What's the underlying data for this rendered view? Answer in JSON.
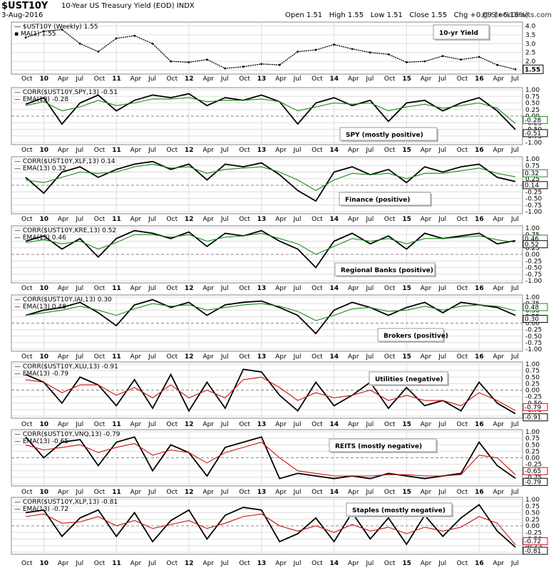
{
  "header": {
    "symbol": "$UST10Y",
    "description": "10-Year US Treasury Yield (EOD)",
    "exchange": "INDX",
    "date": "3-Aug-2016",
    "watermark": "@ StockCharts.com",
    "ohlc": {
      "open_label": "Open",
      "open": "1.51",
      "high_label": "High",
      "high": "1.55",
      "low_label": "Low",
      "low": "1.51",
      "close_label": "Close",
      "close": "1.55",
      "chg_label": "Chg",
      "chg": "+0.09 (+6.16%)"
    }
  },
  "colors": {
    "price": "#000000",
    "corr": "#000000",
    "ema_green": "#1a8a1a",
    "ema_red": "#cc1111",
    "grid": "#dddddd",
    "annot_green": "#1a8a1a",
    "annot_red": "#cc1111"
  },
  "chart_data": [
    {
      "type": "line",
      "series": [
        {
          "name": "$UST10Y (Weekly) 1.55"
        },
        {
          "name": "MA(1) 1.55"
        }
      ],
      "title": "",
      "annotation": "10-yr Yield",
      "yticks": [
        "4.0",
        "3.5",
        "3.0",
        "2.5",
        "2.0",
        "1.5"
      ],
      "ylim": [
        1.4,
        4.1
      ],
      "last_value": "1.55",
      "x": [
        "Oct",
        "10",
        "Apr",
        "Jul",
        "Oct",
        "11",
        "Apr",
        "Jul",
        "Oct",
        "12",
        "Apr",
        "Jul",
        "Oct",
        "13",
        "Apr",
        "Jul",
        "Oct",
        "14",
        "Apr",
        "Jul",
        "Oct",
        "15",
        "Apr",
        "Jul",
        "Oct",
        "16",
        "Apr",
        "Jul"
      ],
      "y": [
        3.35,
        3.7,
        3.8,
        3.0,
        2.55,
        3.3,
        3.45,
        3.0,
        2.0,
        1.95,
        2.1,
        1.6,
        1.7,
        1.85,
        1.8,
        2.55,
        2.65,
        2.95,
        2.7,
        2.5,
        2.4,
        1.95,
        2.0,
        2.3,
        2.1,
        2.25,
        1.8,
        1.55
      ]
    },
    {
      "type": "line",
      "indicator": "CORR($UST10Y,SPY,13) -0.51",
      "ema_label": "EMA(13) -0.28",
      "annotation": "SPY (mostly positive)",
      "ema_color": "green",
      "last_value": "-0.51",
      "ema_last_value": "-0.28",
      "ylim": [
        -1.0,
        1.0
      ],
      "x": [
        "Oct",
        "10",
        "Apr",
        "Jul",
        "Oct",
        "11",
        "Apr",
        "Jul",
        "Oct",
        "12",
        "Apr",
        "Jul",
        "Oct",
        "13",
        "Apr",
        "Jul",
        "Oct",
        "14",
        "Apr",
        "Jul",
        "Oct",
        "15",
        "Apr",
        "Jul",
        "Oct",
        "16",
        "Apr",
        "Jul"
      ],
      "series": [
        {
          "name": "CORR",
          "values": [
            0.45,
            0.7,
            -0.3,
            0.5,
            0.8,
            0.2,
            0.6,
            0.8,
            0.7,
            0.85,
            0.4,
            0.7,
            0.6,
            0.8,
            0.55,
            -0.3,
            0.5,
            0.7,
            0.4,
            0.6,
            -0.2,
            0.5,
            0.6,
            0.2,
            0.5,
            0.7,
            0.2,
            -0.51
          ]
        },
        {
          "name": "EMA",
          "values": [
            0.4,
            0.55,
            0.2,
            0.35,
            0.6,
            0.4,
            0.5,
            0.65,
            0.65,
            0.7,
            0.55,
            0.6,
            0.6,
            0.65,
            0.55,
            0.2,
            0.35,
            0.5,
            0.45,
            0.5,
            0.2,
            0.35,
            0.45,
            0.3,
            0.4,
            0.5,
            0.3,
            -0.28
          ]
        }
      ]
    },
    {
      "type": "line",
      "indicator": "CORR($UST10Y,XLF,13) 0.14",
      "ema_label": "EMA(13) 0.32",
      "annotation": "Finance (positive)",
      "ema_color": "green",
      "last_value": "0.14",
      "ema_last_value": "0.32",
      "ylim": [
        -1.0,
        1.0
      ],
      "x": [
        "Oct",
        "10",
        "Apr",
        "Jul",
        "Oct",
        "11",
        "Apr",
        "Jul",
        "Oct",
        "12",
        "Apr",
        "Jul",
        "Oct",
        "13",
        "Apr",
        "Jul",
        "Oct",
        "14",
        "Apr",
        "Jul",
        "Oct",
        "15",
        "Apr",
        "Jul",
        "Oct",
        "16",
        "Apr",
        "Jul"
      ],
      "series": [
        {
          "name": "CORR",
          "values": [
            0.3,
            -0.3,
            0.5,
            0.7,
            0.3,
            0.6,
            0.8,
            0.9,
            0.6,
            0.8,
            0.2,
            0.8,
            0.7,
            0.85,
            0.4,
            -0.2,
            -0.6,
            0.5,
            0.7,
            0.4,
            0.6,
            0.1,
            0.7,
            0.5,
            0.7,
            0.8,
            0.3,
            0.14
          ]
        },
        {
          "name": "EMA",
          "values": [
            0.2,
            0.1,
            0.3,
            0.5,
            0.45,
            0.5,
            0.7,
            0.8,
            0.65,
            0.7,
            0.45,
            0.6,
            0.65,
            0.7,
            0.5,
            0.2,
            -0.2,
            0.2,
            0.45,
            0.4,
            0.45,
            0.25,
            0.45,
            0.45,
            0.55,
            0.65,
            0.45,
            0.32
          ]
        }
      ]
    },
    {
      "type": "line",
      "indicator": "CORR($UST10Y,KRE,13) 0.52",
      "ema_label": "EMA(13) 0.46",
      "annotation": "Regional Banks (positive)",
      "ema_color": "green",
      "last_value": "0.52",
      "ema_last_value": "0.46",
      "ylim": [
        -1.0,
        1.0
      ],
      "x": [
        "Oct",
        "10",
        "Apr",
        "Jul",
        "Oct",
        "11",
        "Apr",
        "Jul",
        "Oct",
        "12",
        "Apr",
        "Jul",
        "Oct",
        "13",
        "Apr",
        "Jul",
        "Oct",
        "14",
        "Apr",
        "Jul",
        "Oct",
        "15",
        "Apr",
        "Jul",
        "Oct",
        "16",
        "Apr",
        "Jul"
      ],
      "series": [
        {
          "name": "CORR",
          "values": [
            0.5,
            0.7,
            0.2,
            0.6,
            -0.1,
            0.6,
            0.9,
            0.8,
            0.6,
            0.85,
            0.3,
            0.8,
            0.7,
            0.9,
            0.5,
            0.2,
            -0.5,
            0.5,
            0.8,
            0.4,
            0.7,
            0.2,
            0.8,
            0.6,
            0.7,
            0.8,
            0.4,
            0.52
          ]
        },
        {
          "name": "EMA",
          "values": [
            0.45,
            0.55,
            0.4,
            0.5,
            0.2,
            0.45,
            0.75,
            0.75,
            0.65,
            0.75,
            0.5,
            0.65,
            0.7,
            0.8,
            0.6,
            0.4,
            0.0,
            0.3,
            0.6,
            0.5,
            0.6,
            0.4,
            0.6,
            0.6,
            0.65,
            0.7,
            0.55,
            0.46
          ]
        }
      ]
    },
    {
      "type": "line",
      "indicator": "CORR($UST10Y,IAI,13) 0.30",
      "ema_label": "EMA(13) 0.48",
      "annotation": "Brokers (positive)",
      "ema_color": "green",
      "last_value": "0.30",
      "ema_last_value": "0.48",
      "ylim": [
        -1.0,
        1.0
      ],
      "x": [
        "Oct",
        "10",
        "Apr",
        "Jul",
        "Oct",
        "11",
        "Apr",
        "Jul",
        "Oct",
        "12",
        "Apr",
        "Jul",
        "Oct",
        "13",
        "Apr",
        "Jul",
        "Oct",
        "14",
        "Apr",
        "Jul",
        "Oct",
        "15",
        "Apr",
        "Jul",
        "Oct",
        "16",
        "Apr",
        "Jul"
      ],
      "series": [
        {
          "name": "CORR",
          "values": [
            0.3,
            0.5,
            0.6,
            0.8,
            0.4,
            -0.1,
            0.7,
            0.9,
            0.6,
            0.8,
            0.3,
            0.7,
            0.8,
            0.85,
            0.6,
            0.3,
            -0.4,
            0.5,
            0.8,
            0.6,
            0.3,
            0.6,
            0.8,
            0.4,
            0.8,
            0.7,
            0.6,
            0.3
          ]
        },
        {
          "name": "EMA",
          "values": [
            0.3,
            0.4,
            0.5,
            0.65,
            0.5,
            0.3,
            0.55,
            0.75,
            0.65,
            0.7,
            0.5,
            0.6,
            0.7,
            0.75,
            0.65,
            0.45,
            0.1,
            0.3,
            0.55,
            0.6,
            0.45,
            0.5,
            0.65,
            0.5,
            0.65,
            0.7,
            0.65,
            0.48
          ]
        }
      ]
    },
    {
      "type": "line",
      "indicator": "CORR($UST10Y,XLU,13) -0.91",
      "ema_label": "EMA(13) -0.79",
      "annotation": "Utilities (negative)",
      "ema_color": "red",
      "last_value": "-0.91",
      "ema_last_value": "-0.79",
      "ylim": [
        -1.0,
        1.0
      ],
      "x": [
        "Oct",
        "10",
        "Apr",
        "Jul",
        "Oct",
        "11",
        "Apr",
        "Jul",
        "Oct",
        "12",
        "Apr",
        "Jul",
        "Oct",
        "13",
        "Apr",
        "Jul",
        "Oct",
        "14",
        "Apr",
        "Jul",
        "Oct",
        "15",
        "Apr",
        "Jul",
        "Oct",
        "16",
        "Apr",
        "Jul"
      ],
      "series": [
        {
          "name": "CORR",
          "values": [
            0.6,
            0.3,
            -0.5,
            0.5,
            0.2,
            -0.6,
            0.4,
            -0.7,
            0.6,
            -0.8,
            0.3,
            -0.7,
            0.8,
            0.7,
            -0.2,
            -0.8,
            0.3,
            -0.6,
            -0.2,
            0.3,
            -0.7,
            0.1,
            -0.6,
            -0.4,
            -0.8,
            0.3,
            -0.5,
            -0.91
          ]
        },
        {
          "name": "EMA",
          "values": [
            0.4,
            0.3,
            -0.1,
            0.2,
            0.2,
            -0.2,
            0.1,
            -0.3,
            0.2,
            -0.3,
            0.0,
            -0.3,
            0.4,
            0.5,
            0.1,
            -0.4,
            -0.1,
            -0.3,
            -0.2,
            0.0,
            -0.4,
            -0.2,
            -0.4,
            -0.4,
            -0.6,
            -0.1,
            -0.4,
            -0.79
          ]
        }
      ]
    },
    {
      "type": "line",
      "indicator": "CORR($UST10Y,VNQ,13) -0.79",
      "ema_label": "EMA(13) -0.65",
      "annotation": "REITS (mostly negative)",
      "ema_color": "red",
      "last_value": "-0.79",
      "ema_last_value": "-0.65",
      "ylim": [
        -1.0,
        1.0
      ],
      "x": [
        "Oct",
        "10",
        "Apr",
        "Jul",
        "Oct",
        "11",
        "Apr",
        "Jul",
        "Oct",
        "12",
        "Apr",
        "Jul",
        "Oct",
        "13",
        "Apr",
        "Jul",
        "Oct",
        "14",
        "Apr",
        "Jul",
        "Oct",
        "15",
        "Apr",
        "Jul",
        "Oct",
        "16",
        "Apr",
        "Jul"
      ],
      "series": [
        {
          "name": "CORR",
          "values": [
            0.8,
            0.0,
            0.6,
            0.7,
            -0.3,
            0.6,
            0.8,
            -0.5,
            0.5,
            0.2,
            -0.7,
            0.4,
            0.6,
            0.8,
            -0.8,
            -0.6,
            -0.7,
            -0.8,
            -0.7,
            -0.8,
            -0.6,
            -0.7,
            -0.8,
            -0.7,
            -0.6,
            0.6,
            -0.3,
            -0.79
          ]
        },
        {
          "name": "EMA",
          "values": [
            0.5,
            0.3,
            0.4,
            0.5,
            0.2,
            0.4,
            0.55,
            0.1,
            0.3,
            0.2,
            -0.2,
            0.2,
            0.4,
            0.6,
            0.0,
            -0.5,
            -0.6,
            -0.7,
            -0.7,
            -0.7,
            -0.65,
            -0.65,
            -0.7,
            -0.7,
            -0.65,
            0.1,
            0.0,
            -0.65
          ]
        }
      ]
    },
    {
      "type": "line",
      "indicator": "CORR($UST10Y,XLP,13) -0.81",
      "ema_label": "EMA(13) -0.72",
      "annotation": "Staples (mostly negative)",
      "ema_color": "red",
      "last_value": "-0.81",
      "ema_last_value": "-0.72",
      "ylim": [
        -1.0,
        1.0
      ],
      "x": [
        "Oct",
        "10",
        "Apr",
        "Jul",
        "Oct",
        "11",
        "Apr",
        "Jul",
        "Oct",
        "12",
        "Apr",
        "Jul",
        "Oct",
        "13",
        "Apr",
        "Jul",
        "Oct",
        "14",
        "Apr",
        "Jul",
        "Oct",
        "15",
        "Apr",
        "Jul",
        "Oct",
        "16",
        "Apr",
        "Jul"
      ],
      "series": [
        {
          "name": "CORR",
          "values": [
            0.5,
            0.6,
            -0.4,
            0.3,
            0.6,
            -0.4,
            0.5,
            -0.6,
            0.2,
            0.6,
            -0.5,
            0.4,
            0.7,
            0.6,
            -0.6,
            -0.3,
            0.3,
            -0.6,
            0.5,
            -0.5,
            0.3,
            -0.7,
            0.4,
            -0.4,
            0.3,
            0.8,
            -0.2,
            -0.81
          ]
        },
        {
          "name": "EMA",
          "values": [
            0.35,
            0.45,
            0.1,
            0.15,
            0.35,
            0.0,
            0.2,
            -0.1,
            0.05,
            0.2,
            -0.1,
            0.1,
            0.35,
            0.45,
            0.0,
            -0.2,
            0.0,
            -0.25,
            0.05,
            -0.2,
            -0.05,
            -0.3,
            -0.05,
            -0.2,
            -0.05,
            0.35,
            0.1,
            -0.72
          ]
        }
      ]
    }
  ],
  "axes": {
    "price_ticks": [
      "4.0",
      "3.5",
      "3.0",
      "2.5",
      "2.0",
      "1.5"
    ],
    "corr_ticks": [
      "1.00",
      "0.75",
      "0.50",
      "0.25",
      "0.00",
      "-0.25",
      "-0.50",
      "-0.75",
      "-1.00"
    ],
    "x_labels": [
      "Oct",
      "10",
      "Apr",
      "Jul",
      "Oct",
      "11",
      "Apr",
      "Jul",
      "Oct",
      "12",
      "Apr",
      "Jul",
      "Oct",
      "13",
      "Apr",
      "Jul",
      "Oct",
      "14",
      "Apr",
      "Jul",
      "Oct",
      "15",
      "Apr",
      "Jul",
      "Oct",
      "16",
      "Apr",
      "Jul"
    ],
    "year_labels": [
      "10",
      "11",
      "12",
      "13",
      "14",
      "15",
      "16"
    ]
  }
}
